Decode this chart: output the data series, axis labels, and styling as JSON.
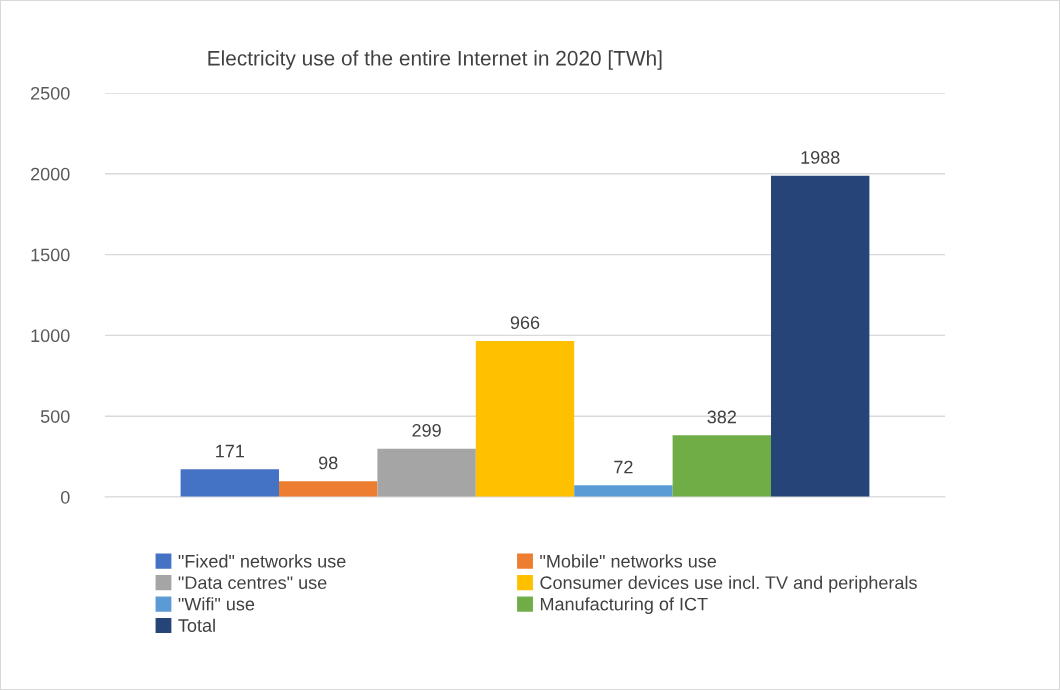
{
  "chart_data": {
    "type": "bar",
    "title": "Electricity use of the entire Internet in 2020 [TWh]",
    "categories": [
      null
    ],
    "series": [
      {
        "name": "\"Fixed\" networks use",
        "color": "#4472c4",
        "values": [
          171
        ]
      },
      {
        "name": "\"Mobile\" networks use",
        "color": "#ed7d31",
        "values": [
          98
        ]
      },
      {
        "name": "\"Data centres\" use",
        "color": "#a5a5a5",
        "values": [
          299
        ]
      },
      {
        "name": "Consumer devices use incl. TV and peripherals",
        "color": "#ffc000",
        "values": [
          966
        ]
      },
      {
        "name": "\"Wifi\" use",
        "color": "#5b9bd5",
        "values": [
          72
        ]
      },
      {
        "name": "Manufacturing of ICT",
        "color": "#70ad47",
        "values": [
          382
        ]
      },
      {
        "name": "Total",
        "color": "#264478",
        "values": [
          1988
        ]
      }
    ],
    "ylim": [
      0,
      2500
    ],
    "yticks": [
      0,
      500,
      1000,
      1500,
      2000,
      2500
    ],
    "grid": "y",
    "legend": "bottom",
    "data_labels": true
  }
}
